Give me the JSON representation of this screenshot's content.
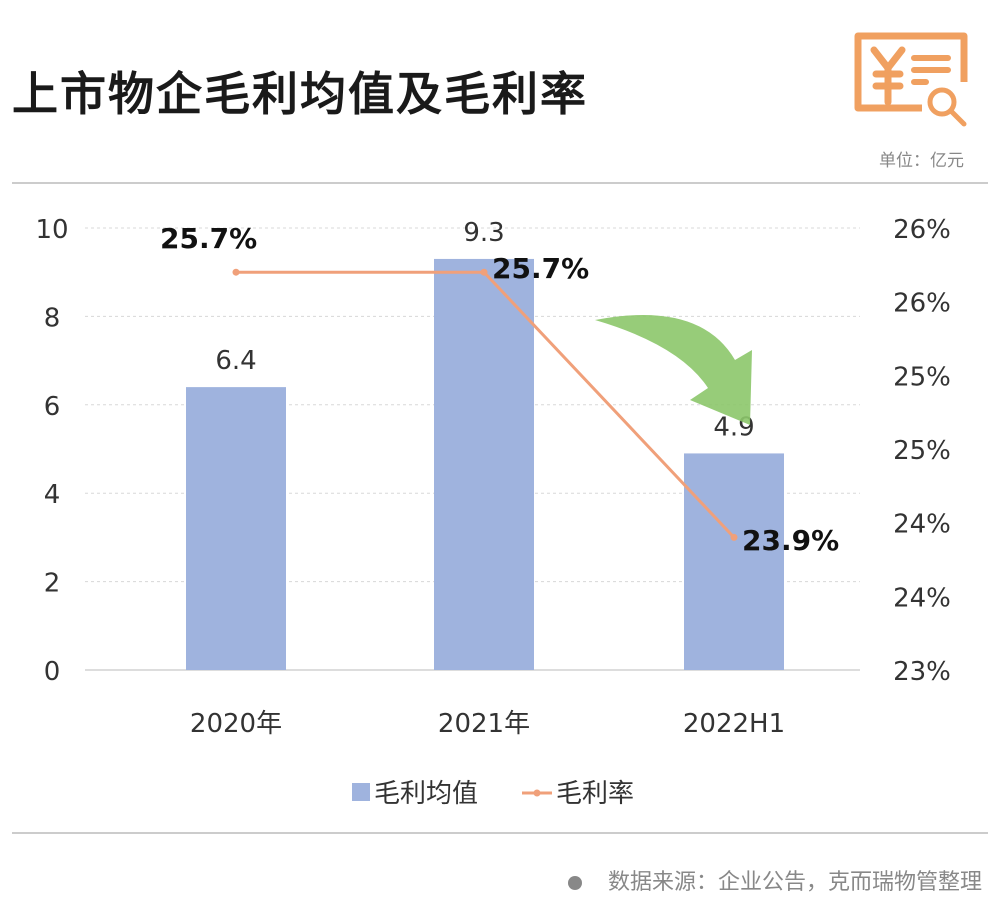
{
  "header": {
    "title": "上市物企毛利均值及毛利率",
    "unit": "单位：亿元",
    "icon": "yuan-invoice-search-icon",
    "icon_color": "#f0a060"
  },
  "footer": {
    "source": "数据来源：企业公告，克而瑞物管整理"
  },
  "chart_data": {
    "type": "bar+line",
    "categories": [
      "2020年",
      "2021年",
      "2022H1"
    ],
    "series": [
      {
        "name": "毛利均值",
        "type": "bar",
        "axis": "left",
        "values": [
          6.4,
          9.3,
          4.9
        ],
        "labels": [
          "6.4",
          "9.3",
          "4.9"
        ],
        "color": "#9fb3de"
      },
      {
        "name": "毛利率",
        "type": "line",
        "axis": "right",
        "values": [
          25.7,
          25.7,
          23.9
        ],
        "labels": [
          "25.7%",
          "25.7%",
          "23.9%"
        ],
        "color": "#f0a07a"
      }
    ],
    "left_axis": {
      "ylim": [
        0,
        10
      ],
      "ticks": [
        "0",
        "2",
        "4",
        "6",
        "8",
        "10"
      ]
    },
    "right_axis": {
      "ylim": [
        23,
        26
      ],
      "ticks": [
        "23%",
        "24%",
        "24%",
        "25%",
        "25%",
        "26%",
        "26%"
      ]
    },
    "grid": true,
    "legend": "bottom",
    "annotation": "green-down-arrow",
    "arrow_color": "#8cc66a"
  }
}
